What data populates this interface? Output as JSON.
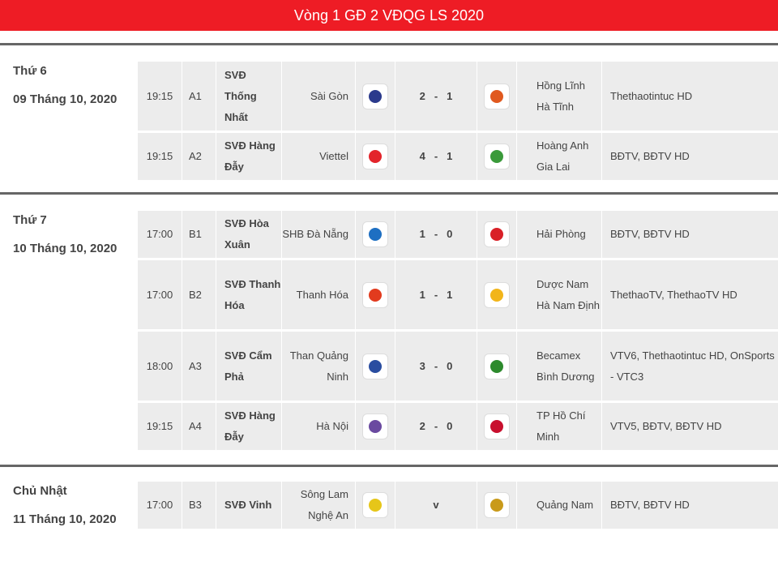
{
  "header": {
    "title": "Vòng 1 GĐ 2 VĐQG LS 2020"
  },
  "days": [
    {
      "name": "Thứ 6",
      "date": "09 Tháng 10, 2020",
      "matches": [
        {
          "time": "19:15",
          "code": "A1",
          "stadium": "SVĐ Thống Nhất",
          "home": "Sài Gòn",
          "home_logo": "saigon-logo",
          "home_score": "2",
          "away_score": "1",
          "away": "Hồng Lĩnh Hà Tĩnh",
          "away_logo": "hatinh-logo",
          "tv": "Thethaotintuc HD"
        },
        {
          "time": "19:15",
          "code": "A2",
          "stadium": "SVĐ Hàng Đẫy",
          "home": "Viettel",
          "home_logo": "viettel-logo",
          "home_score": "4",
          "away_score": "1",
          "away": "Hoàng Anh Gia Lai",
          "away_logo": "hagl-logo",
          "tv": "BĐTV, BĐTV HD"
        }
      ]
    },
    {
      "name": "Thứ 7",
      "date": "10 Tháng 10, 2020",
      "matches": [
        {
          "time": "17:00",
          "code": "B1",
          "stadium": "SVĐ Hòa Xuân",
          "home": "SHB Đà Nẵng",
          "home_logo": "danang-logo",
          "home_score": "1",
          "away_score": "0",
          "away": "Hải Phòng",
          "away_logo": "haiphong-logo",
          "tv": "BĐTV, BĐTV HD"
        },
        {
          "time": "17:00",
          "code": "B2",
          "stadium": "SVĐ Thanh Hóa",
          "home": "Thanh Hóa",
          "home_logo": "thanhhoa-logo",
          "home_score": "1",
          "away_score": "1",
          "away": "Dược Nam Hà Nam Định",
          "away_logo": "namdinh-logo",
          "tv": "ThethaoTV, ThethaoTV HD"
        },
        {
          "time": "18:00",
          "code": "A3",
          "stadium": "SVĐ Cẩm Phả",
          "home": "Than Quảng Ninh",
          "home_logo": "quangninh-logo",
          "home_score": "3",
          "away_score": "0",
          "away": "Becamex Bình Dương",
          "away_logo": "binhduong-logo",
          "tv": "VTV6, Thethaotintuc HD, OnSports - VTC3"
        },
        {
          "time": "19:15",
          "code": "A4",
          "stadium": "SVĐ Hàng Đẫy",
          "home": "Hà Nội",
          "home_logo": "hanoi-logo",
          "home_score": "2",
          "away_score": "0",
          "away": "TP Hồ Chí Minh",
          "away_logo": "tphcm-logo",
          "tv": "VTV5, BĐTV, BĐTV HD"
        }
      ]
    },
    {
      "name": "Chủ Nhật",
      "date": "11 Tháng 10, 2020",
      "matches": [
        {
          "time": "17:00",
          "code": "B3",
          "stadium": "SVĐ Vinh",
          "home": "Sông Lam Nghệ An",
          "home_logo": "slna-logo",
          "vs": "v",
          "away": "Quảng Nam",
          "away_logo": "quangnam-logo",
          "tv": "BĐTV, BĐTV HD"
        }
      ]
    }
  ],
  "logo_colors": {
    "saigon-logo": "#2b3a8c",
    "hatinh-logo": "#e0591f",
    "viettel-logo": "#e3242b",
    "hagl-logo": "#3a9a3a",
    "danang-logo": "#1e6fc2",
    "haiphong-logo": "#d92027",
    "thanhhoa-logo": "#e23b1e",
    "namdinh-logo": "#f2b51a",
    "quangninh-logo": "#2a4da0",
    "binhduong-logo": "#2d8a2d",
    "hanoi-logo": "#6a4aa0",
    "tphcm-logo": "#c8102e",
    "slna-logo": "#e6c619",
    "quangnam-logo": "#c99a1a"
  }
}
